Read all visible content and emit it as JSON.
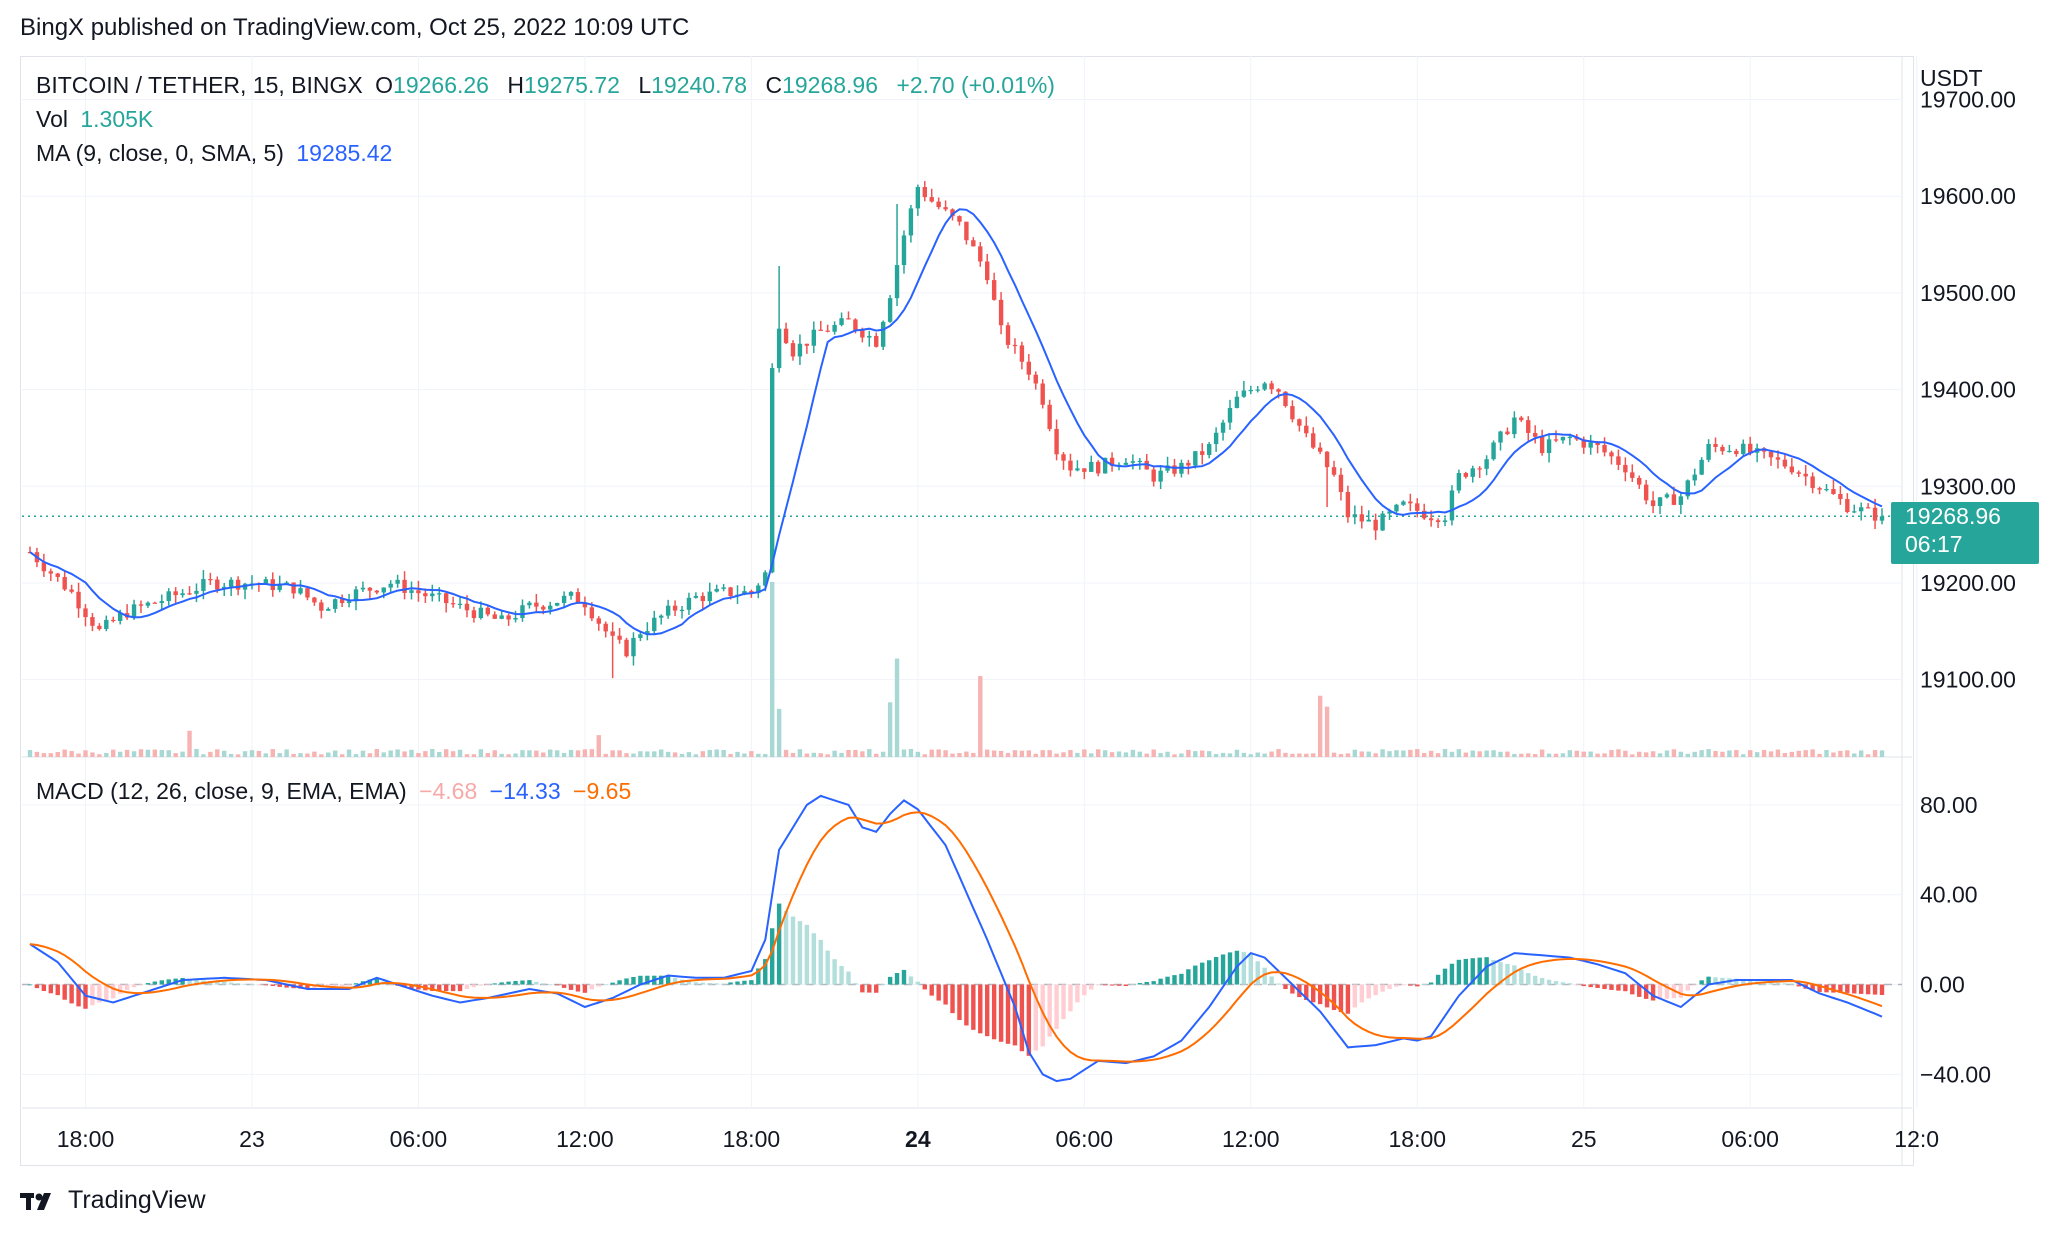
{
  "header": {
    "publisher_line": "BingX published on TradingView.com, Oct 25, 2022 10:09 UTC"
  },
  "legend": {
    "symbol": "BITCOIN / TETHER, 15, BINGX",
    "open_label": "O",
    "open": "19266.26",
    "high_label": "H",
    "high": "19275.72",
    "low_label": "L",
    "low": "19240.78",
    "close_label": "C",
    "close": "19268.96",
    "change": "+2.70 (+0.01%)",
    "vol_label": "Vol",
    "vol_value": "1.305K",
    "ma_label": "MA (9, close, 0, SMA, 5)",
    "ma_value": "19285.42",
    "macd_label": "MACD (12, 26, close, 9, EMA, EMA)",
    "macd_hist": "−4.68",
    "macd_line": "−14.33",
    "macd_signal": "−9.65"
  },
  "price_tag": {
    "price": "19268.96",
    "countdown": "06:17"
  },
  "footer": {
    "brand": "TradingView"
  },
  "colors": {
    "up": "#26a69a",
    "down": "#ef5350",
    "ma": "#2962ff",
    "signal": "#ff6d00",
    "hist_up_fade": "#b2dfdb",
    "hist_down_fade": "#ffcdd2"
  },
  "chart_data": {
    "type": "candlestick",
    "unit": "USDT",
    "ylim": [
      19020,
      19745
    ],
    "yticks": [
      19100,
      19200,
      19300,
      19400,
      19500,
      19600,
      19700
    ],
    "ytick_labels": [
      "19100.00",
      "19200.00",
      "19300.00",
      "19400.00",
      "19500.00",
      "19600.00",
      "19700.00"
    ],
    "current_price": 19268.96,
    "x_tick_labels": [
      "18:00",
      "23",
      "06:00",
      "12:00",
      "18:00",
      "24",
      "06:00",
      "12:00",
      "18:00",
      "25",
      "06:00",
      "12:0"
    ],
    "x_tick_bars": [
      8,
      32,
      56,
      80,
      104,
      128,
      152,
      176,
      200,
      224,
      248,
      272
    ],
    "bold_x_ticks": [
      "24"
    ],
    "bar_count": 268,
    "close_anchors": [
      [
        0,
        19232
      ],
      [
        6,
        19190
      ],
      [
        10,
        19150
      ],
      [
        14,
        19170
      ],
      [
        20,
        19185
      ],
      [
        26,
        19200
      ],
      [
        32,
        19200
      ],
      [
        38,
        19195
      ],
      [
        42,
        19175
      ],
      [
        46,
        19188
      ],
      [
        52,
        19200
      ],
      [
        58,
        19185
      ],
      [
        64,
        19170
      ],
      [
        68,
        19160
      ],
      [
        72,
        19175
      ],
      [
        78,
        19185
      ],
      [
        80,
        19180
      ],
      [
        84,
        19140
      ],
      [
        86,
        19130
      ],
      [
        88,
        19150
      ],
      [
        92,
        19170
      ],
      [
        96,
        19185
      ],
      [
        100,
        19190
      ],
      [
        104,
        19190
      ],
      [
        106,
        19210
      ],
      [
        107,
        19420
      ],
      [
        108,
        19470
      ],
      [
        110,
        19440
      ],
      [
        114,
        19460
      ],
      [
        118,
        19470
      ],
      [
        122,
        19450
      ],
      [
        124,
        19500
      ],
      [
        126,
        19560
      ],
      [
        128,
        19610
      ],
      [
        130,
        19595
      ],
      [
        134,
        19570
      ],
      [
        138,
        19520
      ],
      [
        140,
        19460
      ],
      [
        144,
        19420
      ],
      [
        146,
        19390
      ],
      [
        148,
        19340
      ],
      [
        150,
        19320
      ],
      [
        154,
        19320
      ],
      [
        158,
        19330
      ],
      [
        162,
        19310
      ],
      [
        166,
        19320
      ],
      [
        170,
        19340
      ],
      [
        174,
        19390
      ],
      [
        178,
        19410
      ],
      [
        180,
        19400
      ],
      [
        184,
        19350
      ],
      [
        188,
        19310
      ],
      [
        190,
        19270
      ],
      [
        194,
        19260
      ],
      [
        198,
        19280
      ],
      [
        202,
        19270
      ],
      [
        204,
        19270
      ],
      [
        206,
        19310
      ],
      [
        210,
        19330
      ],
      [
        214,
        19370
      ],
      [
        218,
        19340
      ],
      [
        222,
        19350
      ],
      [
        226,
        19340
      ],
      [
        230,
        19320
      ],
      [
        234,
        19280
      ],
      [
        238,
        19290
      ],
      [
        242,
        19340
      ],
      [
        246,
        19340
      ],
      [
        250,
        19330
      ],
      [
        254,
        19320
      ],
      [
        258,
        19300
      ],
      [
        262,
        19280
      ],
      [
        266,
        19270
      ],
      [
        267,
        19268.96
      ]
    ],
    "volume": {
      "spikes": [
        [
          107,
          8
        ],
        [
          108,
          2.2
        ],
        [
          124,
          2.5
        ],
        [
          125,
          4.5
        ],
        [
          137,
          3.7
        ],
        [
          186,
          2.8
        ],
        [
          187,
          2.3
        ],
        [
          23,
          1.2
        ],
        [
          82,
          1.0
        ]
      ]
    },
    "ma": {
      "period": 9,
      "type": "SMA",
      "last": 19285.42
    },
    "macd": {
      "params": "12, 26, close, 9, EMA, EMA",
      "ylim": [
        -55,
        100
      ],
      "yticks": [
        -40,
        0,
        40,
        80
      ],
      "ytick_labels": [
        "−40.00",
        "0.00",
        "40.00",
        "80.00"
      ],
      "last": {
        "histogram": -4.68,
        "macd": -14.33,
        "signal": -9.65
      },
      "macd_anchors": [
        [
          0,
          18
        ],
        [
          4,
          10
        ],
        [
          8,
          -5
        ],
        [
          12,
          -8
        ],
        [
          16,
          -4
        ],
        [
          22,
          2
        ],
        [
          28,
          3
        ],
        [
          34,
          2
        ],
        [
          40,
          -2
        ],
        [
          46,
          -2
        ],
        [
          50,
          3
        ],
        [
          54,
          -1
        ],
        [
          58,
          -5
        ],
        [
          62,
          -8
        ],
        [
          66,
          -6
        ],
        [
          72,
          -2
        ],
        [
          76,
          -4
        ],
        [
          80,
          -10
        ],
        [
          84,
          -6
        ],
        [
          88,
          0
        ],
        [
          92,
          4
        ],
        [
          96,
          3
        ],
        [
          100,
          3
        ],
        [
          104,
          6
        ],
        [
          106,
          20
        ],
        [
          108,
          60
        ],
        [
          112,
          80
        ],
        [
          114,
          84
        ],
        [
          118,
          80
        ],
        [
          120,
          70
        ],
        [
          122,
          68
        ],
        [
          124,
          76
        ],
        [
          126,
          82
        ],
        [
          128,
          78
        ],
        [
          132,
          62
        ],
        [
          134,
          48
        ],
        [
          138,
          20
        ],
        [
          142,
          -10
        ],
        [
          144,
          -30
        ],
        [
          146,
          -40
        ],
        [
          148,
          -43
        ],
        [
          150,
          -42
        ],
        [
          154,
          -34
        ],
        [
          158,
          -35
        ],
        [
          162,
          -32
        ],
        [
          166,
          -25
        ],
        [
          170,
          -10
        ],
        [
          174,
          8
        ],
        [
          176,
          14
        ],
        [
          178,
          12
        ],
        [
          182,
          0
        ],
        [
          186,
          -12
        ],
        [
          188,
          -20
        ],
        [
          190,
          -28
        ],
        [
          194,
          -27
        ],
        [
          198,
          -24
        ],
        [
          200,
          -25
        ],
        [
          202,
          -23
        ],
        [
          206,
          -5
        ],
        [
          210,
          8
        ],
        [
          214,
          14
        ],
        [
          218,
          13
        ],
        [
          222,
          12
        ],
        [
          226,
          9
        ],
        [
          230,
          5
        ],
        [
          234,
          -5
        ],
        [
          238,
          -10
        ],
        [
          242,
          0
        ],
        [
          246,
          2
        ],
        [
          250,
          2
        ],
        [
          254,
          2
        ],
        [
          258,
          -4
        ],
        [
          262,
          -8
        ],
        [
          266,
          -13
        ],
        [
          267,
          -14.33
        ]
      ]
    }
  }
}
